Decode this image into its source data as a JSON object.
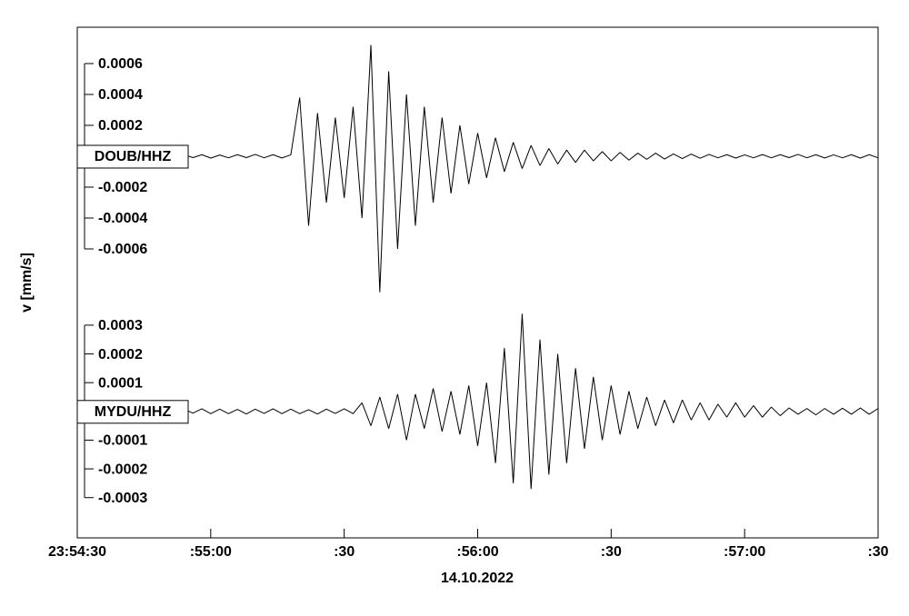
{
  "chart_data": {
    "type": "line",
    "y_label": "v [mm/s]",
    "x_label": "14.10.2022",
    "xlim": [
      0,
      180
    ],
    "xticks": [
      {
        "value": 0,
        "label": "23:54:30"
      },
      {
        "value": 30,
        "label": ":55:00"
      },
      {
        "value": 60,
        "label": ":30"
      },
      {
        "value": 90,
        "label": ":56:00"
      },
      {
        "value": 120,
        "label": ":30"
      },
      {
        "value": 150,
        "label": ":57:00"
      },
      {
        "value": 180,
        "label": ":30"
      }
    ],
    "x": [
      0,
      2,
      4,
      6,
      8,
      10,
      12,
      14,
      16,
      18,
      20,
      22,
      24,
      26,
      28,
      30,
      32,
      34,
      36,
      38,
      40,
      42,
      44,
      46,
      48,
      50,
      52,
      54,
      56,
      58,
      60,
      62,
      64,
      66,
      68,
      70,
      72,
      74,
      76,
      78,
      80,
      82,
      84,
      86,
      88,
      90,
      92,
      94,
      96,
      98,
      100,
      102,
      104,
      106,
      108,
      110,
      112,
      114,
      116,
      118,
      120,
      122,
      124,
      126,
      128,
      130,
      132,
      134,
      136,
      138,
      140,
      142,
      144,
      146,
      148,
      150,
      152,
      154,
      156,
      158,
      160,
      162,
      164,
      166,
      168,
      170,
      172,
      174,
      176,
      178,
      180
    ],
    "panels": [
      {
        "name": "DOUB/HHZ",
        "color": "#000000",
        "ylim": [
          -0.0009,
          0.000835
        ],
        "yticks": [
          0.0006,
          0.0004,
          0.0002,
          -0.0002,
          -0.0004,
          -0.0006
        ],
        "values": [
          1e-05,
          -1e-05,
          8e-06,
          -1.2e-05,
          1e-05,
          -8e-06,
          1.2e-05,
          -1e-05,
          9e-06,
          -1.1e-05,
          1e-05,
          -1e-05,
          1.1e-05,
          -9e-06,
          1e-05,
          -1.2e-05,
          8e-06,
          -1e-05,
          1e-05,
          -9e-06,
          1.2e-05,
          -1e-05,
          1e-05,
          -1.1e-05,
          9e-06,
          0.00038,
          -0.00045,
          0.00028,
          -0.0003,
          0.00025,
          -0.00027,
          0.00032,
          -0.0004,
          0.00072,
          -0.00088,
          0.00055,
          -0.0006,
          0.0004,
          -0.00045,
          0.00032,
          -0.0003,
          0.00025,
          -0.00024,
          0.0002,
          -0.00018,
          0.00015,
          -0.00014,
          0.00012,
          -0.0001,
          9e-05,
          -8e-05,
          7e-05,
          -6e-05,
          5e-05,
          -5e-05,
          4e-05,
          -4e-05,
          4e-05,
          -3e-05,
          3e-05,
          -3e-05,
          2.5e-05,
          -2.5e-05,
          2e-05,
          -2e-05,
          2e-05,
          -1.8e-05,
          1.5e-05,
          -1.5e-05,
          1.4e-05,
          -1.3e-05,
          1.2e-05,
          -1e-05,
          1e-05,
          -1.2e-05,
          9e-06,
          -1e-05,
          1.1e-05,
          -1e-05,
          1e-05,
          -9e-06,
          1.2e-05,
          -1e-05,
          1e-05,
          -1.1e-05,
          9e-06,
          -1e-05,
          1e-05,
          -1.2e-05,
          1e-05,
          -1e-05
        ]
      },
      {
        "name": "MYDU/HHZ",
        "color": "#000000",
        "ylim": [
          -0.00044,
          0.000404
        ],
        "yticks": [
          0.0003,
          0.0002,
          0.0001,
          -0.0001,
          -0.0002,
          -0.0003
        ],
        "values": [
          8e-06,
          -8e-06,
          6e-06,
          -9e-06,
          8e-06,
          -7e-06,
          9e-06,
          -8e-06,
          7e-06,
          -8e-06,
          8e-06,
          -9e-06,
          8e-06,
          -6e-06,
          9e-06,
          -8e-06,
          8e-06,
          -8e-06,
          7e-06,
          -9e-06,
          8e-06,
          -7e-06,
          9e-06,
          -8e-06,
          8e-06,
          -8e-06,
          6e-06,
          -9e-06,
          8e-06,
          -7e-06,
          9e-06,
          -8e-06,
          3e-05,
          -5e-05,
          5e-05,
          -6e-05,
          6e-05,
          -0.0001,
          6e-05,
          -6e-05,
          8e-05,
          -7e-05,
          7e-05,
          -8e-05,
          9e-05,
          -0.00012,
          0.0001,
          -0.00018,
          0.00022,
          -0.00025,
          0.00034,
          -0.00027,
          0.00025,
          -0.00022,
          0.0002,
          -0.00018,
          0.00015,
          -0.00013,
          0.00012,
          -0.0001,
          9e-05,
          -8e-05,
          7e-05,
          -6e-05,
          5e-05,
          -5e-05,
          4e-05,
          -4e-05,
          4e-05,
          -3e-05,
          3e-05,
          -3e-05,
          2.5e-05,
          -2e-05,
          3e-05,
          -2e-05,
          2e-05,
          -2e-05,
          1.5e-05,
          -1.5e-05,
          1.2e-05,
          -1e-05,
          1e-05,
          -1.2e-05,
          1e-05,
          -1e-05,
          1.1e-05,
          -1e-05,
          1.2e-05,
          -1e-05,
          1e-05
        ]
      }
    ]
  }
}
